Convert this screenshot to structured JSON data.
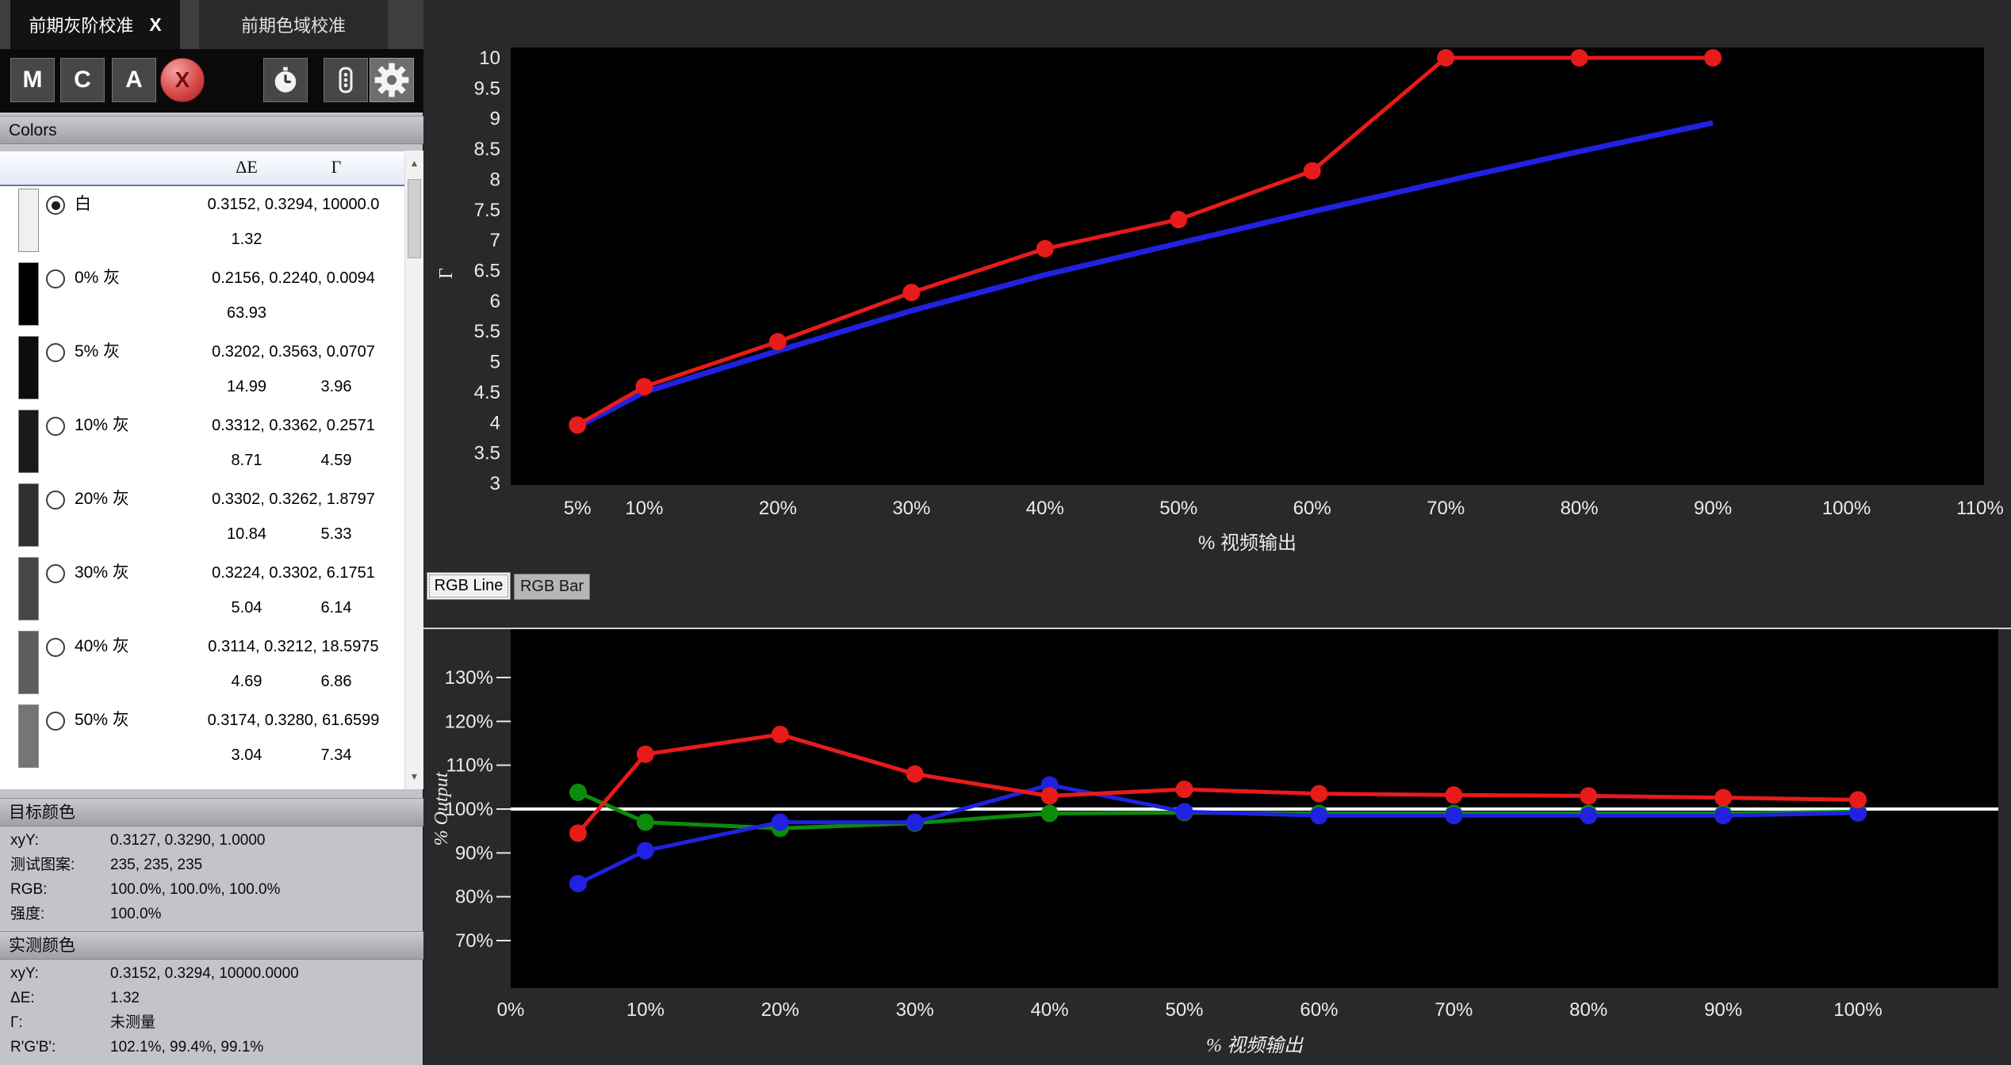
{
  "window": {
    "tabs": [
      {
        "label": "前期灰阶校准",
        "close": "X",
        "active": true
      },
      {
        "label": "前期色域校准",
        "active": false
      }
    ]
  },
  "icons": {
    "toolbar_icons": [
      "stopwatch-icon",
      "vertical-dots-icon",
      "gear-icon"
    ],
    "scroll_up": "▲",
    "scroll_down": "▼"
  },
  "sidebar": {
    "toolbar": {
      "buttons": [
        {
          "label": "M"
        },
        {
          "label": "C"
        },
        {
          "label": "A"
        }
      ],
      "delete_label": "X"
    },
    "colors_header": "Colors",
    "list": {
      "columns": [
        "ΔE",
        "Γ"
      ],
      "rows": [
        {
          "label": "白",
          "swatch": "#f0f0f0",
          "selected": true,
          "xyY": "0.3152, 0.3294, 10000.0",
          "dE": "1.32",
          "gamma": ""
        },
        {
          "label": "0% 灰",
          "swatch": "#000000",
          "selected": false,
          "xyY": "0.2156, 0.2240, 0.0094",
          "dE": "63.93",
          "gamma": ""
        },
        {
          "label": "5% 灰",
          "swatch": "#0d0d0d",
          "selected": false,
          "xyY": "0.3202, 0.3563, 0.0707",
          "dE": "14.99",
          "gamma": "3.96"
        },
        {
          "label": "10% 灰",
          "swatch": "#1a1a1a",
          "selected": false,
          "xyY": "0.3312, 0.3362, 0.2571",
          "dE": "8.71",
          "gamma": "4.59"
        },
        {
          "label": "20% 灰",
          "swatch": "#303030",
          "selected": false,
          "xyY": "0.3302, 0.3262, 1.8797",
          "dE": "10.84",
          "gamma": "5.33"
        },
        {
          "label": "30% 灰",
          "swatch": "#464646",
          "selected": false,
          "xyY": "0.3224, 0.3302, 6.1751",
          "dE": "5.04",
          "gamma": "6.14"
        },
        {
          "label": "40% 灰",
          "swatch": "#5c5c5c",
          "selected": false,
          "xyY": "0.3114, 0.3212, 18.5975",
          "dE": "4.69",
          "gamma": "6.86"
        },
        {
          "label": "50% 灰",
          "swatch": "#757575",
          "selected": false,
          "xyY": "0.3174, 0.3280, 61.6599",
          "dE": "3.04",
          "gamma": "7.34"
        }
      ]
    },
    "target": {
      "header": "目标颜色",
      "rows": [
        {
          "key": "xyY:",
          "value": "0.3127, 0.3290, 1.0000"
        },
        {
          "key": "测试图案:",
          "value": "235, 235, 235"
        },
        {
          "key": "RGB:",
          "value": "100.0%, 100.0%, 100.0%"
        },
        {
          "key": "强度:",
          "value": "100.0%"
        }
      ]
    },
    "measured": {
      "header": "实测颜色",
      "rows": [
        {
          "key": "xyY:",
          "value": "0.3152, 0.3294, 10000.0000"
        },
        {
          "key": "ΔE:",
          "value": "1.32"
        },
        {
          "key": "Γ:",
          "value": "未测量"
        },
        {
          "key": "R'G'B':",
          "value": "102.1%, 99.4%, 99.1%"
        }
      ]
    }
  },
  "chart_tabs": [
    {
      "label": "RGB Line",
      "active": true
    },
    {
      "label": "RGB Bar",
      "active": false
    }
  ],
  "chart_data": [
    {
      "type": "line",
      "title": "",
      "ylabel": "Γ",
      "xlabel": "% 视频输出",
      "background": "#000000",
      "grid": false,
      "ylim": [
        3,
        10
      ],
      "xlim": [
        0,
        110
      ],
      "y_tick_values": [
        10,
        9.5,
        9,
        8.5,
        8,
        7.5,
        7,
        6.5,
        6,
        5.5,
        5,
        4.5,
        4,
        3.5,
        3
      ],
      "x_tick_values": [
        5,
        10,
        20,
        30,
        40,
        50,
        60,
        70,
        80,
        90,
        100,
        110
      ],
      "x_tick_labels": [
        "5%",
        "10%",
        "20%",
        "30%",
        "40%",
        "50%",
        "60%",
        "70%",
        "80%",
        "90%",
        "100%",
        "110%"
      ],
      "series": [
        {
          "name": "gamma-measured",
          "color": "#e81b1b",
          "markers": true,
          "x": [
            5,
            10,
            20,
            30,
            40,
            50,
            60,
            70,
            80,
            90
          ],
          "y": [
            3.96,
            4.59,
            5.33,
            6.14,
            6.86,
            7.34,
            8.14,
            10,
            10,
            10
          ]
        },
        {
          "name": "gamma-reference",
          "color": "#2121e0",
          "markers": false,
          "x": [
            5,
            10,
            20,
            30,
            40,
            50,
            60,
            70,
            80,
            90
          ],
          "y": [
            3.93,
            4.5,
            5.18,
            5.84,
            6.43,
            6.95,
            7.47,
            7.97,
            8.46,
            8.93
          ]
        }
      ]
    },
    {
      "type": "line",
      "title": "",
      "ylabel": "% Output",
      "xlabel": "% 视频输出",
      "background": "#000000",
      "grid": false,
      "ylim": [
        65,
        135
      ],
      "xlim": [
        0,
        110
      ],
      "reference_line": 100,
      "reference_line_color": "#ffffff",
      "y_tick_values": [
        130,
        120,
        110,
        100,
        90,
        80,
        70
      ],
      "x_tick_values": [
        0,
        10,
        20,
        30,
        40,
        50,
        60,
        70,
        80,
        90,
        100
      ],
      "x_tick_labels": [
        "0%",
        "10%",
        "20%",
        "30%",
        "40%",
        "50%",
        "60%",
        "70%",
        "80%",
        "90%",
        "100%"
      ],
      "series": [
        {
          "name": "red-channel",
          "color": "#e81b1b",
          "markers": true,
          "x": [
            5,
            10,
            20,
            30,
            40,
            50,
            60,
            70,
            80,
            90,
            100
          ],
          "y": [
            94.5,
            112.5,
            117,
            108,
            103,
            104.5,
            103.5,
            103.2,
            103,
            102.6,
            102.1
          ]
        },
        {
          "name": "blue-channel",
          "color": "#2121e0",
          "markers": true,
          "x": [
            5,
            10,
            20,
            30,
            40,
            50,
            60,
            70,
            80,
            90,
            100
          ],
          "y": [
            83,
            90.5,
            97,
            97,
            105.5,
            99.4,
            98.5,
            98.5,
            98.5,
            98.5,
            99.1
          ]
        },
        {
          "name": "green-channel",
          "color": "#0c8c0c",
          "markers": true,
          "x": [
            5,
            10,
            20,
            30,
            40,
            50,
            60,
            70,
            80,
            90,
            100
          ],
          "y": [
            103.8,
            97,
            95.6,
            96.8,
            99,
            99.2,
            99,
            99,
            99,
            99,
            99.4
          ]
        }
      ]
    }
  ]
}
